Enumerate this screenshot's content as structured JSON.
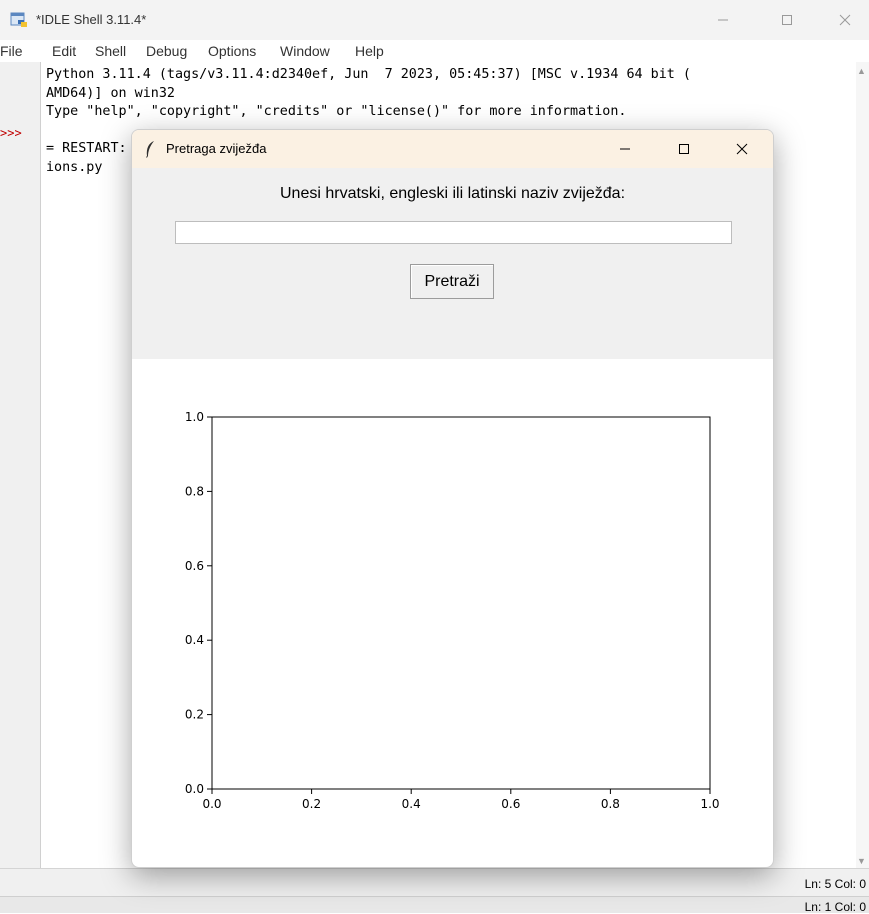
{
  "idle": {
    "title": "*IDLE Shell 3.11.4*",
    "menu": [
      "File",
      "Edit",
      "Shell",
      "Debug",
      "Options",
      "Window",
      "Help"
    ],
    "prompt": ">>>",
    "shell_text": "Python 3.11.4 (tags/v3.11.4:d2340ef, Jun  7 2023, 05:45:37) [MSC v.1934 64 bit (\nAMD64)] on win32\nType \"help\", \"copyright\", \"credits\" or \"license()\" for more information.\n\n= RESTART: C:\\Users\\Desktop\\Constellations.py                              nstellat\nions.py",
    "status": "Ln: 5   Col: 0",
    "status2": "Ln: 1   Col: 0"
  },
  "dialog": {
    "title": "Pretraga zviježđa",
    "prompt_label": "Unesi hrvatski, engleski ili latinski naziv zviježđa:",
    "search_value": "",
    "search_button": "Pretraži"
  },
  "chart_data": {
    "type": "scatter",
    "title": "",
    "xlabel": "",
    "ylabel": "",
    "xlim": [
      0.0,
      1.0
    ],
    "ylim": [
      0.0,
      1.0
    ],
    "xticks": [
      "0.0",
      "0.2",
      "0.4",
      "0.6",
      "0.8",
      "1.0"
    ],
    "yticks": [
      "0.0",
      "0.2",
      "0.4",
      "0.6",
      "0.8",
      "1.0"
    ],
    "points": [],
    "grid": false
  }
}
